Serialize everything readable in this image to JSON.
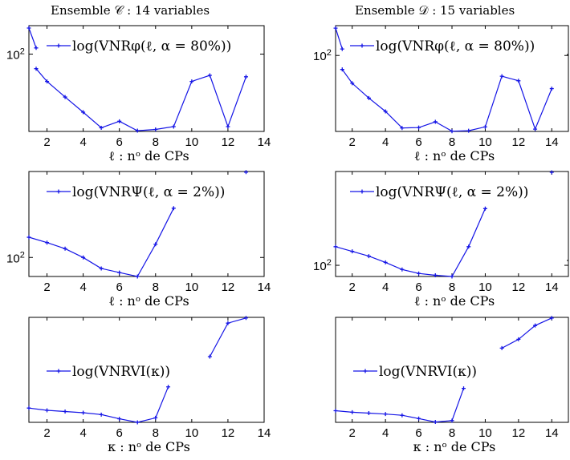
{
  "figure": {
    "columns": [
      {
        "title": "Ensemble 𝒞 : 14 variables"
      },
      {
        "title": "Ensemble 𝒟 : 15 variables"
      }
    ]
  },
  "chart_data": [
    {
      "type": "line",
      "panel": "C-top",
      "xlabel": "ℓ : nᵒ de CPs",
      "ylabel": "",
      "xlim": [
        1,
        14
      ],
      "xticks": [
        "2",
        "4",
        "6",
        "8",
        "10",
        "12",
        "14"
      ],
      "yscale": "log",
      "ytick_labels": [
        "10²"
      ],
      "legend": {
        "text": "log(VNRφ(ℓ, α = 80%))",
        "placement": "top"
      },
      "grid": false,
      "color": "#1414e6",
      "series": [
        {
          "x": [
            1,
            1.4
          ],
          "y": [
            180,
            115
          ]
        },
        {
          "x": [
            1.4,
            2,
            3,
            4,
            5,
            6,
            7,
            8,
            9,
            10,
            11,
            12,
            13
          ],
          "y": [
            72,
            54,
            38,
            27,
            19,
            22,
            17.8,
            18.3,
            19.5,
            54,
            62,
            19.5,
            60
          ]
        }
      ]
    },
    {
      "type": "line",
      "panel": "D-top",
      "xlabel": "ℓ : nᵒ de CPs",
      "ylabel": "",
      "xlim": [
        1,
        15
      ],
      "xticks": [
        "2",
        "4",
        "6",
        "8",
        "10",
        "12",
        "14"
      ],
      "yscale": "log",
      "ytick_labels": [
        "10²"
      ],
      "legend": {
        "text": "log(VNRφ(ℓ, α = 80%))",
        "placement": "top"
      },
      "grid": false,
      "color": "#1414e6",
      "series": [
        {
          "x": [
            1,
            1.4
          ],
          "y": [
            180,
            115
          ]
        },
        {
          "x": [
            1.4,
            2,
            3,
            4,
            5,
            6,
            7,
            8,
            9,
            10,
            11,
            12,
            13,
            14
          ],
          "y": [
            74,
            55,
            40,
            30,
            21,
            21.2,
            24,
            19.6,
            19.8,
            21.5,
            64,
            58,
            20.5,
            49
          ]
        }
      ]
    },
    {
      "type": "line",
      "panel": "C-middle",
      "xlabel": "ℓ : nᵒ de CPs",
      "ylabel": "",
      "xlim": [
        1,
        14
      ],
      "xticks": [
        "2",
        "4",
        "6",
        "8",
        "10",
        "12",
        "14"
      ],
      "yscale": "log",
      "ytick_labels": [
        "10²"
      ],
      "legend": {
        "text": "log(VNRΨ(ℓ, α = 2%))",
        "placement": "top"
      },
      "grid": false,
      "color": "#1414e6",
      "series": [
        {
          "x": [
            1,
            2,
            3,
            4,
            5,
            6,
            7,
            8,
            9
          ],
          "y": [
            158,
            140,
            122,
            100,
            78,
            71,
            65,
            135,
            305
          ]
        },
        {
          "x": [
            13
          ],
          "y": [
            690
          ]
        }
      ]
    },
    {
      "type": "line",
      "panel": "D-middle",
      "xlabel": "ℓ : nᵒ de CPs",
      "ylabel": "",
      "xlim": [
        1,
        15
      ],
      "xticks": [
        "2",
        "4",
        "6",
        "8",
        "10",
        "12",
        "14"
      ],
      "yscale": "log",
      "ytick_labels": [
        "10²"
      ],
      "legend": {
        "text": "log(VNRΨ(ℓ, α = 2%))",
        "placement": "top"
      },
      "grid": false,
      "color": "#1414e6",
      "series": [
        {
          "x": [
            1,
            2,
            3,
            4,
            5,
            6,
            7,
            8,
            9,
            10
          ],
          "y": [
            145,
            132,
            120,
            106,
            92,
            85,
            82,
            80,
            145,
            310
          ]
        },
        {
          "x": [
            14
          ],
          "y": [
            640
          ]
        }
      ]
    },
    {
      "type": "line",
      "panel": "C-bottom",
      "xlabel": "κ : nᵒ de CPs",
      "ylabel": "",
      "xlim": [
        1,
        14
      ],
      "xticks": [
        "2",
        "4",
        "6",
        "8",
        "10",
        "12",
        "14"
      ],
      "yscale": "log",
      "ytick_labels": [],
      "legend": {
        "text": "log(VNRVI(κ))",
        "placement": "center-left"
      },
      "grid": false,
      "color": "#1414e6",
      "series": [
        {
          "x": [
            1,
            2,
            3,
            4,
            5,
            6,
            7,
            8,
            8.7
          ],
          "y": [
            21,
            20.2,
            19.8,
            19.4,
            18.8,
            17.5,
            16.5,
            17.8,
            30
          ]
        },
        {
          "x": [
            11,
            12,
            13
          ],
          "y": [
            50,
            88,
            96
          ]
        }
      ]
    },
    {
      "type": "line",
      "panel": "D-bottom",
      "xlabel": "κ : nᵒ de CPs",
      "ylabel": "",
      "xlim": [
        1,
        15
      ],
      "xticks": [
        "2",
        "4",
        "6",
        "8",
        "10",
        "12",
        "14"
      ],
      "yscale": "log",
      "ytick_labels": [],
      "legend": {
        "text": "log(VNRVI(κ))",
        "placement": "center-left"
      },
      "grid": false,
      "color": "#1414e6",
      "series": [
        {
          "x": [
            1,
            2,
            3,
            4,
            5,
            6,
            7,
            8,
            8.7
          ],
          "y": [
            20.8,
            20.3,
            20,
            19.7,
            19.3,
            18.3,
            17.3,
            17.7,
            30
          ]
        },
        {
          "x": [
            11,
            12,
            13,
            14
          ],
          "y": [
            58,
            67,
            84,
            95
          ]
        }
      ]
    }
  ]
}
